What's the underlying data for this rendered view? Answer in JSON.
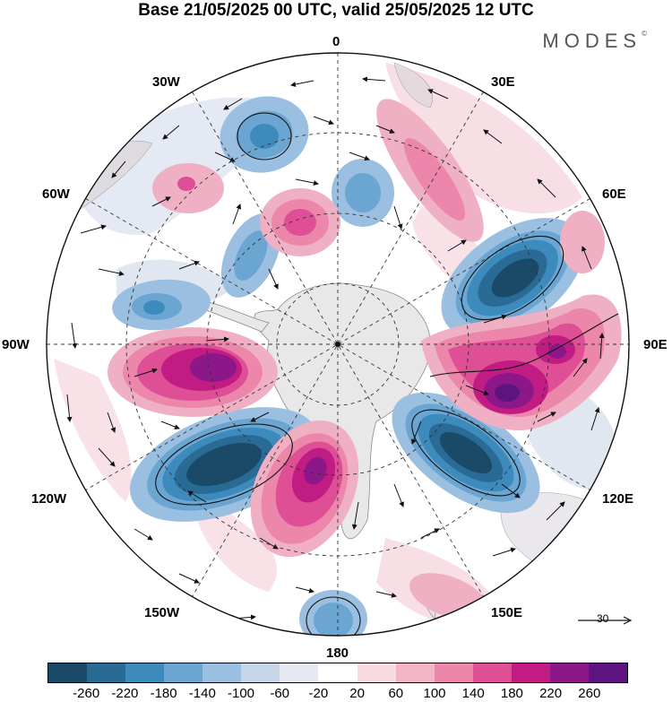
{
  "title": "Base 21/05/2025 00 UTC, valid 25/05/2025 12 UTC",
  "brand": "MODES",
  "brand_mark": "©",
  "projection": "south-polar-stereographic",
  "longitude_labels": {
    "lon_0": "0",
    "lon_30e": "30E",
    "lon_60e": "60E",
    "lon_90e": "90E",
    "lon_120e": "120E",
    "lon_150e": "150E",
    "lon_180": "180",
    "lon_150w": "150W",
    "lon_120w": "120W",
    "lon_90w": "90W",
    "lon_60w": "60W",
    "lon_30w": "30W"
  },
  "colorbar": {
    "colors": [
      "#1b4a68",
      "#2a6b96",
      "#3d8bbd",
      "#6aa6d1",
      "#9bbfe0",
      "#c8d6ea",
      "#e6e9f2",
      "#ffffff",
      "#f8dbe0",
      "#f2b5c6",
      "#ec87ab",
      "#de4f95",
      "#c11c84",
      "#8c1789",
      "#5e1480"
    ],
    "ticks": [
      "-260",
      "-220",
      "-180",
      "-140",
      "-100",
      "-60",
      "-20",
      "20",
      "60",
      "100",
      "140",
      "180",
      "220",
      "260"
    ]
  },
  "reference_vector": {
    "label": "30"
  },
  "anomaly_color_scale": {
    "neg_strong": "#1b4a68",
    "neg_mid": "#3d8bbd",
    "neg_weak": "#9bbfe0",
    "neg_faint": "#dde4f0",
    "pos_faint": "#f6dbe2",
    "pos_weak": "#f0b0c4",
    "pos_mid": "#de4f95",
    "pos_strong": "#8c1789",
    "pos_max": "#5e1480"
  }
}
